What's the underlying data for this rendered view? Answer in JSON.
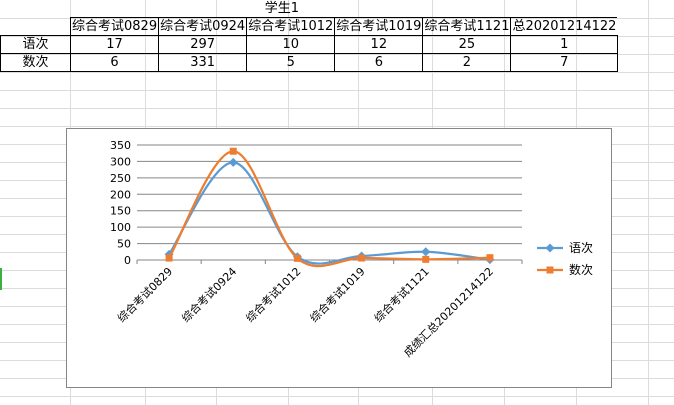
{
  "table": {
    "title": "学生1",
    "headers": [
      "综合考试0829",
      "综合考试0924",
      "综合考试1012",
      "综合考试1019",
      "综合考试1121",
      "总20201214122"
    ],
    "rows": [
      {
        "label": "语次",
        "values": [
          "17",
          "297",
          "10",
          "12",
          "25",
          "1"
        ]
      },
      {
        "label": "数次",
        "values": [
          "6",
          "331",
          "5",
          "6",
          "2",
          "7"
        ]
      }
    ]
  },
  "chart_data": {
    "type": "line",
    "categories": [
      "综合考试0829",
      "综合考试0924",
      "综合考试1012",
      "综合考试1019",
      "综合考试1121",
      "成绩汇总20201214122"
    ],
    "series": [
      {
        "name": "语次",
        "values": [
          17,
          297,
          10,
          12,
          25,
          1
        ],
        "color": "#5b9bd5",
        "marker": "diamond"
      },
      {
        "name": "数次",
        "values": [
          6,
          331,
          5,
          6,
          2,
          7
        ],
        "color": "#ed7d31",
        "marker": "square"
      }
    ],
    "ylim": [
      0,
      350
    ],
    "yticks": [
      "0",
      "50",
      "100",
      "150",
      "200",
      "250",
      "300",
      "350"
    ],
    "smooth": true,
    "grid": true,
    "legend": "right"
  }
}
